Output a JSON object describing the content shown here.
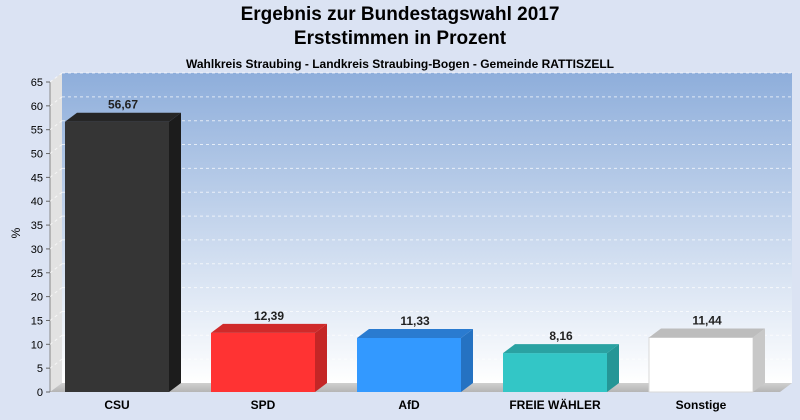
{
  "chart_data": {
    "type": "bar",
    "title_line1": "Ergebnis zur Bundestagswahl 2017",
    "title_line2": "Erststimmen in Prozent",
    "subtitle": "Wahlkreis Straubing - Landkreis Straubing-Bogen - Gemeinde RATTISZELL",
    "ylabel": "%",
    "xlabel": "",
    "ylim": [
      0,
      65
    ],
    "ytick_step": 5,
    "grid": true,
    "categories": [
      "CSU",
      "SPD",
      "AfD",
      "FREIE WÄHLER",
      "Sonstige"
    ],
    "values": [
      56.67,
      12.39,
      11.33,
      8.16,
      11.44
    ],
    "value_labels": [
      "56,67",
      "12,39",
      "11,33",
      "8,16",
      "11,44"
    ],
    "colors": [
      "#353535",
      "#ff3333",
      "#3399ff",
      "#33c6c6",
      "#ffffff"
    ],
    "side_colors": [
      "#1c1c1c",
      "#c42626",
      "#2572c2",
      "#259696",
      "#c8c8c8"
    ],
    "top_colors": [
      "#262626",
      "#d02a2a",
      "#2a7bd0",
      "#2aa2a2",
      "#bdbdbd"
    ]
  }
}
